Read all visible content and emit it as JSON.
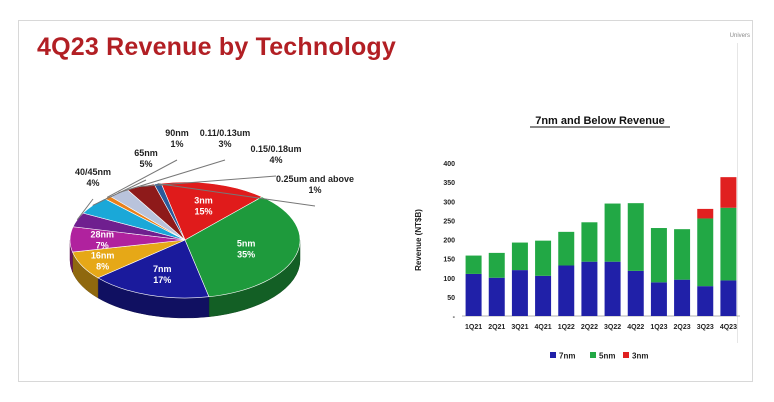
{
  "slide": {
    "title": "4Q23 Revenue by Technology",
    "corner_text": "Univers"
  },
  "chart_data": [
    {
      "type": "pie",
      "title": "",
      "slices": [
        {
          "name": "3nm",
          "value": 15,
          "label": "15%",
          "color": "#e01b1b"
        },
        {
          "name": "5nm",
          "value": 35,
          "label": "35%",
          "color": "#1e9a3c"
        },
        {
          "name": "7nm",
          "value": 17,
          "label": "17%",
          "color": "#1a1a9c"
        },
        {
          "name": "16nm",
          "value": 8,
          "label": "8%",
          "color": "#e6a817"
        },
        {
          "name": "28nm",
          "value": 7,
          "label": "7%",
          "color": "#b0229e"
        },
        {
          "name": "40/45nm",
          "value": 4,
          "label": "4%",
          "color": "#6f1f8f"
        },
        {
          "name": "65nm",
          "value": 5,
          "label": "5%",
          "color": "#1aa8d8"
        },
        {
          "name": "90nm",
          "value": 1,
          "label": "1%",
          "color": "#e9801a"
        },
        {
          "name": "0.11/0.13um",
          "value": 3,
          "label": "3%",
          "color": "#b9c3dc"
        },
        {
          "name": "0.15/0.18um",
          "value": 4,
          "label": "4%",
          "color": "#8e1a1a"
        },
        {
          "name": "0.25um and above",
          "value": 1,
          "label": "1%",
          "color": "#2a5a9a"
        }
      ]
    },
    {
      "type": "bar",
      "stacked": true,
      "title": "7nm and Below Revenue",
      "xlabel": "",
      "ylabel": "Revenue (NT$B)",
      "ylim": [
        0,
        400
      ],
      "yticks": [
        "-",
        "50",
        "100",
        "150",
        "200",
        "250",
        "300",
        "350",
        "400"
      ],
      "grid": false,
      "legend_position": "bottom",
      "categories": [
        "1Q21",
        "2Q21",
        "3Q21",
        "4Q21",
        "1Q22",
        "2Q22",
        "3Q22",
        "4Q22",
        "1Q23",
        "2Q23",
        "3Q23",
        "4Q23"
      ],
      "series": [
        {
          "name": "7nm",
          "color": "#2020a8",
          "values": [
            110,
            100,
            120,
            105,
            132,
            142,
            142,
            118,
            88,
            95,
            78,
            93
          ]
        },
        {
          "name": "5nm",
          "color": "#22a845",
          "values": [
            48,
            65,
            72,
            92,
            88,
            103,
            152,
            177,
            142,
            132,
            177,
            190
          ]
        },
        {
          "name": "3nm",
          "color": "#e02020",
          "values": [
            0,
            0,
            0,
            0,
            0,
            0,
            0,
            0,
            0,
            0,
            25,
            80
          ]
        }
      ]
    }
  ]
}
